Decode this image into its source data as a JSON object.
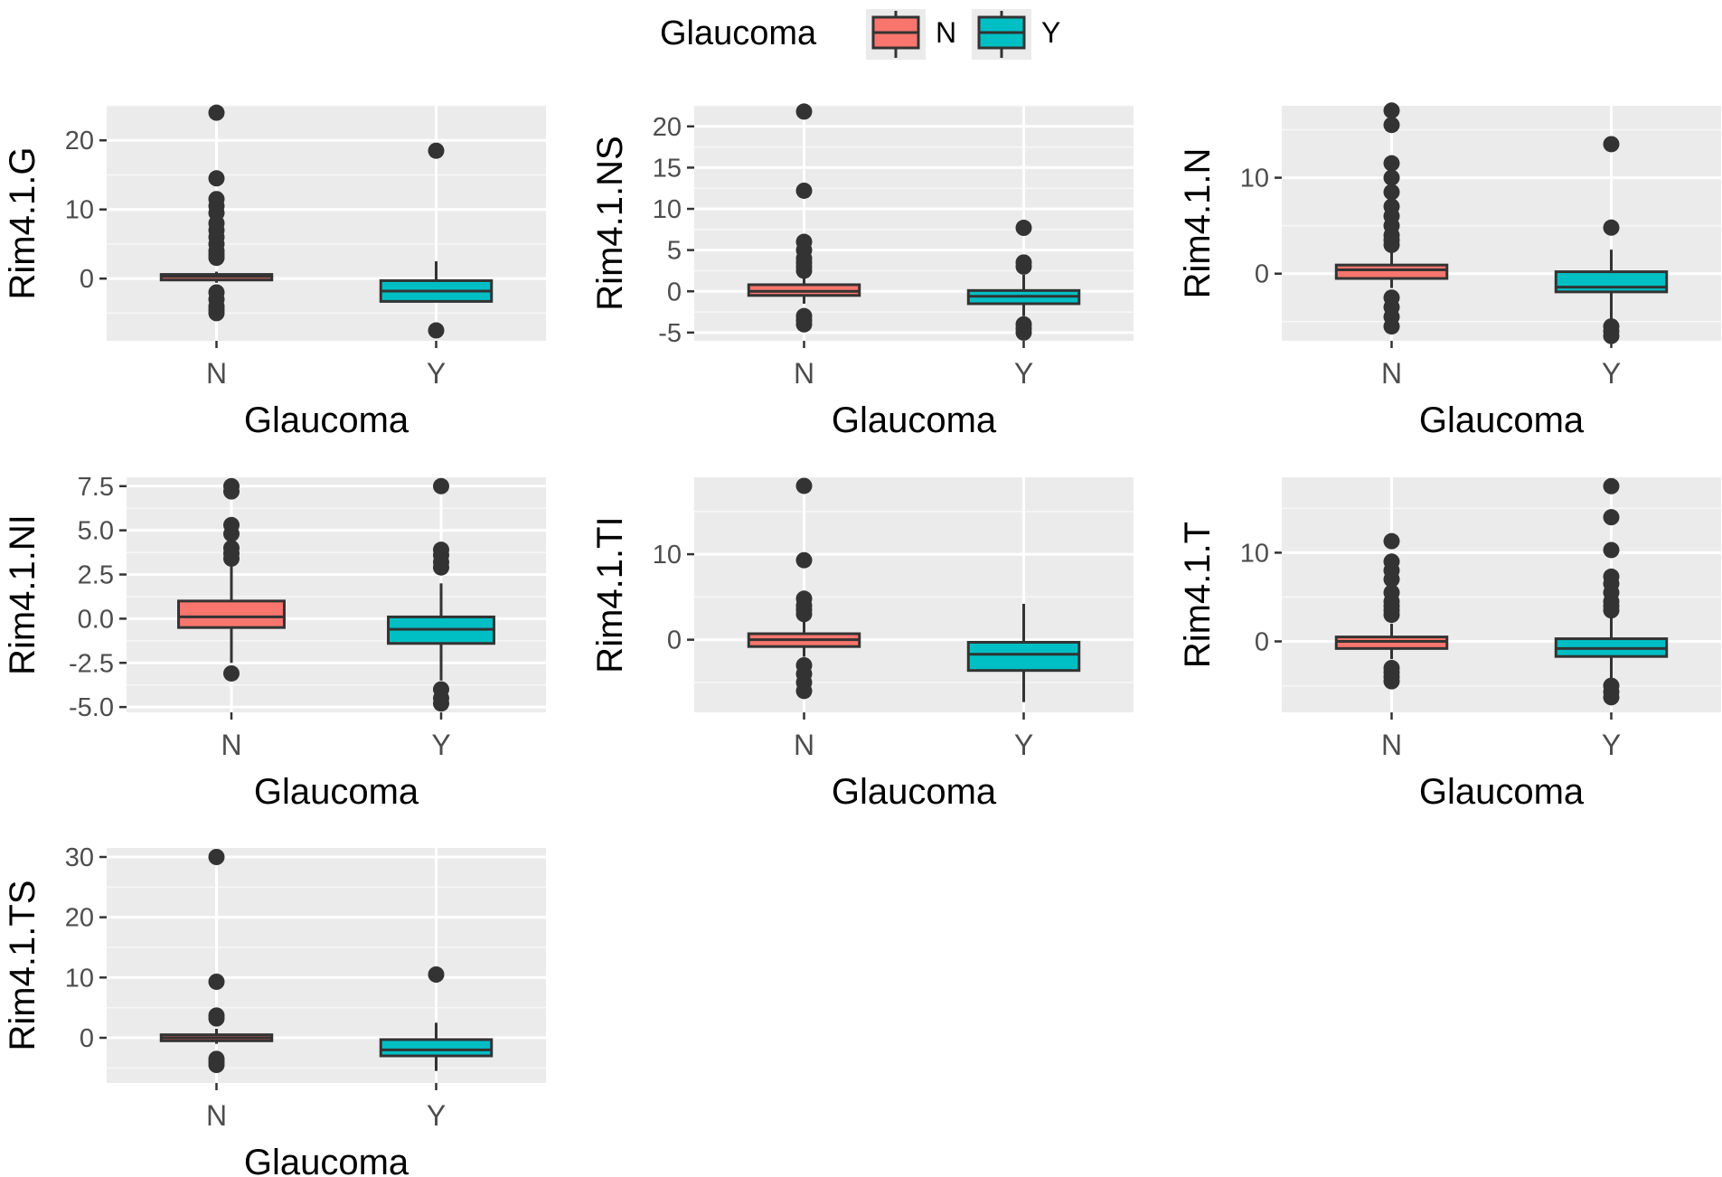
{
  "legend": {
    "title": "Glaucoma",
    "items": [
      {
        "label": "N",
        "color": "#F8766D"
      },
      {
        "label": "Y",
        "color": "#00BFC4"
      }
    ]
  },
  "chart_data": [
    {
      "type": "box",
      "ylabel": "Rim4.1.G",
      "xlabel": "Glaucoma",
      "categories": [
        "N",
        "Y"
      ],
      "ylim": [
        -9,
        25
      ],
      "yticks": [
        0,
        10,
        20
      ],
      "grid": true,
      "boxes": [
        {
          "group": "N",
          "min": -0.6,
          "q1": -0.2,
          "median": 0.3,
          "q3": 0.6,
          "max": 1.0,
          "outliers": [
            24,
            14.5,
            11.5,
            10.5,
            9.5,
            8,
            7,
            6,
            5,
            4,
            3.5,
            3,
            -2,
            -3,
            -4,
            -4.5,
            -5
          ]
        },
        {
          "group": "Y",
          "min": -3.4,
          "q1": -3.3,
          "median": -1.8,
          "q3": -0.3,
          "max": 2.5,
          "outliers": [
            18.5,
            -7.5
          ]
        }
      ]
    },
    {
      "type": "box",
      "ylabel": "Rim4.1.NS",
      "xlabel": "Glaucoma",
      "categories": [
        "N",
        "Y"
      ],
      "ylim": [
        -6,
        22.5
      ],
      "yticks": [
        -5,
        0,
        5,
        10,
        15,
        20
      ],
      "grid": true,
      "boxes": [
        {
          "group": "N",
          "min": -1.5,
          "q1": -0.5,
          "median": 0.0,
          "q3": 0.8,
          "max": 2.0,
          "outliers": [
            21.8,
            12.2,
            6,
            5,
            4,
            3.5,
            3,
            2.5,
            -3,
            -3.5,
            -4
          ]
        },
        {
          "group": "Y",
          "min": -3,
          "q1": -1.5,
          "median": -0.6,
          "q3": 0.1,
          "max": 2.0,
          "outliers": [
            7.7,
            3.5,
            3,
            -4,
            -4.5,
            -5
          ]
        }
      ]
    },
    {
      "type": "box",
      "ylabel": "Rim4.1.N",
      "xlabel": "Glaucoma",
      "categories": [
        "N",
        "Y"
      ],
      "ylim": [
        -7,
        17.5
      ],
      "yticks": [
        0,
        10
      ],
      "grid": true,
      "boxes": [
        {
          "group": "N",
          "min": -1.5,
          "q1": -0.5,
          "median": 0.4,
          "q3": 0.9,
          "max": 2.5,
          "outliers": [
            17,
            15.5,
            11.5,
            10,
            8.5,
            7,
            6,
            5,
            4,
            3.5,
            3,
            -2.5,
            -3.5,
            -4.5,
            -5.5
          ]
        },
        {
          "group": "Y",
          "min": -5,
          "q1": -1.9,
          "median": -1.4,
          "q3": 0.2,
          "max": 2.5,
          "outliers": [
            13.5,
            4.8,
            -5.5,
            -6,
            -6.5
          ]
        }
      ]
    },
    {
      "type": "box",
      "ylabel": "Rim4.1.NI",
      "xlabel": "Glaucoma",
      "categories": [
        "N",
        "Y"
      ],
      "ylim": [
        -5.3,
        8
      ],
      "yticks": [
        -5.0,
        -2.5,
        0.0,
        2.5,
        5.0,
        7.5
      ],
      "ytick_labels": [
        "-5.0",
        "-2.5",
        "0.0",
        "2.5",
        "5.0",
        "7.5"
      ],
      "grid": true,
      "boxes": [
        {
          "group": "N",
          "min": -2.5,
          "q1": -0.5,
          "median": 0.1,
          "q3": 1.0,
          "max": 3.0,
          "outliers": [
            7.5,
            7.2,
            5.3,
            4.8,
            4,
            3.7,
            3.4,
            -3.1
          ]
        },
        {
          "group": "Y",
          "min": -3.5,
          "q1": -1.4,
          "median": -0.6,
          "q3": 0.1,
          "max": 2.0,
          "outliers": [
            7.5,
            3.9,
            3.6,
            3.2,
            2.9,
            -4,
            -4.5,
            -4.8
          ]
        }
      ]
    },
    {
      "type": "box",
      "ylabel": "Rim4.1.TI",
      "xlabel": "Glaucoma",
      "categories": [
        "N",
        "Y"
      ],
      "ylim": [
        -8.5,
        19
      ],
      "yticks": [
        0,
        10
      ],
      "grid": true,
      "boxes": [
        {
          "group": "N",
          "min": -2,
          "q1": -0.8,
          "median": 0.0,
          "q3": 0.7,
          "max": 2.5,
          "outliers": [
            18,
            9.3,
            4.8,
            4,
            3.5,
            3,
            -3,
            -4,
            -5,
            -6
          ]
        },
        {
          "group": "Y",
          "min": -7.3,
          "q1": -3.6,
          "median": -1.7,
          "q3": -0.3,
          "max": 4.2,
          "outliers": []
        }
      ]
    },
    {
      "type": "box",
      "ylabel": "Rim4.1.T",
      "xlabel": "Glaucoma",
      "categories": [
        "N",
        "Y"
      ],
      "ylim": [
        -8,
        18.5
      ],
      "yticks": [
        0,
        10
      ],
      "grid": true,
      "boxes": [
        {
          "group": "N",
          "min": -2,
          "q1": -0.8,
          "median": 0.0,
          "q3": 0.5,
          "max": 2.0,
          "outliers": [
            11.3,
            9,
            8,
            7,
            5.5,
            4.5,
            4,
            3.5,
            3,
            -3,
            -3.5,
            -4,
            -4.5
          ]
        },
        {
          "group": "Y",
          "min": -4.5,
          "q1": -1.7,
          "median": -0.8,
          "q3": 0.3,
          "max": 3.0,
          "outliers": [
            17.5,
            14,
            10.3,
            7.3,
            6.5,
            5.5,
            4.5,
            4,
            3.5,
            -5,
            -5.7,
            -6.3
          ]
        }
      ]
    },
    {
      "type": "box",
      "ylabel": "Rim4.1.TS",
      "xlabel": "Glaucoma",
      "categories": [
        "N",
        "Y"
      ],
      "ylim": [
        -7.5,
        31.5
      ],
      "yticks": [
        0,
        10,
        20,
        30
      ],
      "grid": true,
      "boxes": [
        {
          "group": "N",
          "min": -1.0,
          "q1": -0.5,
          "median": 0.0,
          "q3": 0.5,
          "max": 1.5,
          "outliers": [
            30,
            9.3,
            3.7,
            3.2,
            -3.5,
            -4,
            -4.5
          ]
        },
        {
          "group": "Y",
          "min": -5.5,
          "q1": -3.0,
          "median": -2.0,
          "q3": -0.3,
          "max": 2.5,
          "outliers": [
            10.5
          ]
        }
      ]
    }
  ]
}
